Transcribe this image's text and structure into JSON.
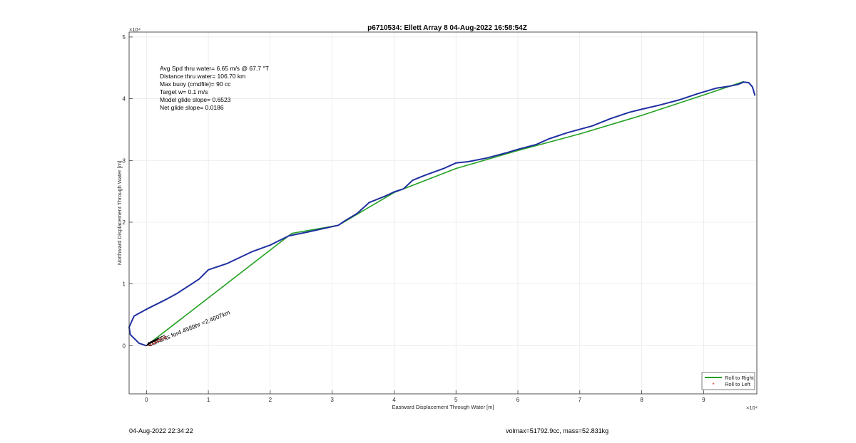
{
  "chart_data": {
    "type": "line",
    "title": "p6710534: Ellett Array 8 04-Aug-2022 16:58:54Z",
    "xlabel": "Eastward Displacement Through Water [m]",
    "ylabel": "Northward Displacement Through Water [m]",
    "x_exponent": "×10⁴",
    "y_exponent": "×10⁴",
    "xlim": [
      -2800,
      98600
    ],
    "ylim": [
      -7800,
      50800
    ],
    "x_ticks": [
      "0",
      "1",
      "2",
      "3",
      "4",
      "5",
      "6",
      "7",
      "8",
      "9"
    ],
    "y_ticks": [
      "0",
      "1",
      "2",
      "3",
      "4",
      "5"
    ],
    "grid": true,
    "stats": [
      "Avg Spd thru water=  6.65 m/s @  67.7 °T",
      "Distance thru water= 106.70 km",
      "Max buoy (cmdfile)= 90 cc",
      "Target w= 0.1 m/s",
      "Model glide slope= 0.6523",
      "Net glide slope= 0.0186"
    ],
    "annotation": "Currents for4.4589hr =2.4607km",
    "legend": {
      "placement": "bottom-right",
      "entries": [
        {
          "label": "Roll to Right",
          "color": "#22a022"
        },
        {
          "label": "Roll to Left",
          "color": "#cc2222"
        }
      ]
    },
    "series": [
      {
        "name": "Roll to Right",
        "color": "#22a022",
        "x": [
          0,
          23500,
          31000,
          40000,
          50000,
          60000,
          70000,
          80000,
          90000,
          96500
        ],
        "y": [
          0,
          18200,
          19500,
          24800,
          28700,
          31600,
          34300,
          37300,
          40600,
          42800
        ]
      },
      {
        "color": "#1f2fa0",
        "x": [
          0,
          -1200,
          -2600,
          -2800,
          -2000,
          0,
          3000,
          5000,
          7000,
          8500,
          10000,
          13000,
          17000,
          20000,
          23000,
          26000,
          31000,
          32000,
          34000,
          36000,
          38500,
          40000,
          41500,
          43000,
          45000,
          48000,
          50000,
          52000,
          55000,
          58000,
          60000,
          63000,
          65000,
          68000,
          72000,
          75000,
          78000,
          80000,
          83000,
          86000,
          89000,
          92000,
          94000,
          95500,
          96500,
          97300,
          97900,
          98300
        ],
        "y": [
          0,
          400,
          1800,
          3000,
          4800,
          5900,
          7400,
          8500,
          9800,
          10800,
          12300,
          13300,
          15200,
          16300,
          17800,
          18400,
          19500,
          20200,
          21400,
          23200,
          24200,
          24900,
          25400,
          26800,
          27600,
          28700,
          29600,
          29800,
          30400,
          31200,
          31800,
          32600,
          33500,
          34500,
          35600,
          36800,
          37800,
          38300,
          39000,
          39800,
          40800,
          41700,
          42000,
          42300,
          42700,
          42600,
          41900,
          40500
        ]
      }
    ],
    "currents": {
      "color": "#cc2222",
      "x": [
        400,
        800,
        1200,
        1600,
        2000,
        2500,
        3000
      ],
      "y": [
        150,
        300,
        500,
        650,
        850,
        1050,
        1300
      ]
    }
  },
  "footer": {
    "left": "04-Aug-2022 22:34:22",
    "center": "volmax=51792.9cc, mass=52.831kg"
  }
}
